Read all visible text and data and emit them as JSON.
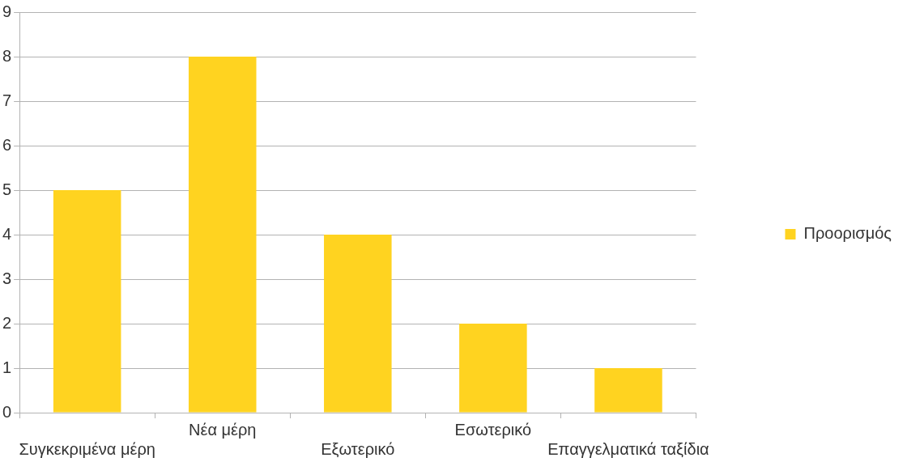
{
  "chart_data": {
    "type": "bar",
    "categories": [
      "Συγκεκριμένα μέρη",
      "Νέα μέρη",
      "Εξωτερικό",
      "Εσωτερικό",
      "Επαγγελματικά ταξίδια"
    ],
    "series": [
      {
        "name": "Προορισμός",
        "color": "#ffd320",
        "values": [
          5,
          8,
          4,
          2,
          1
        ]
      }
    ],
    "ylim": [
      0,
      9
    ],
    "yticks": [
      0,
      1,
      2,
      3,
      4,
      5,
      6,
      7,
      8,
      9
    ],
    "grid": "y",
    "legend": "right"
  }
}
